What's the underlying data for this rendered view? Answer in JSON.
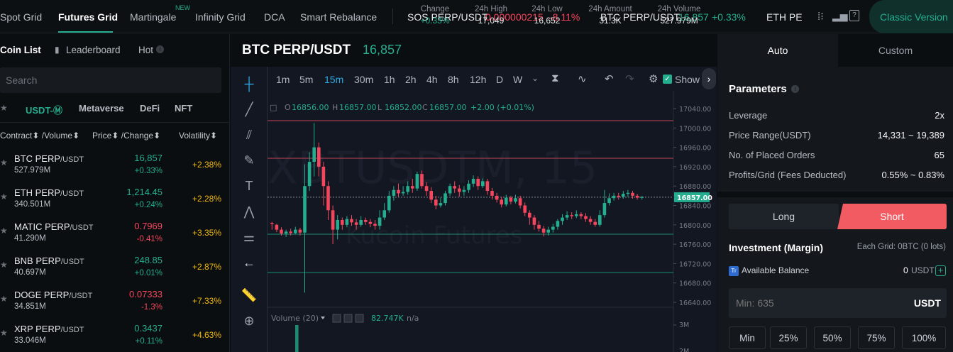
{
  "nav": {
    "items": [
      "Spot Grid",
      "Futures Grid",
      "Martingale",
      "Infinity Grid",
      "DCA",
      "Smart Rebalance"
    ],
    "new_badge": "NEW",
    "tickers": [
      {
        "name": "SOS PERP/USDT",
        "price": "0.000000215",
        "change": "-8.11%"
      },
      {
        "name": "BTC PERP/USDT",
        "price": "16,857",
        "change": "+0.33%"
      },
      {
        "name": "ETH PE",
        "price": "",
        "change": ""
      }
    ],
    "classic_label": "Classic Version"
  },
  "left": {
    "tabs": [
      "Coin List",
      "Leaderboard",
      "Hot"
    ],
    "search_placeholder": "Search",
    "filters": [
      "USDT-Ⓜ",
      "Metaverse",
      "DeFi",
      "NFT"
    ],
    "headers": {
      "contract": "Contract⬍ /Volume⬍",
      "price": "Price⬍ /Change⬍",
      "volatility": "Volatility⬍"
    },
    "rows": [
      {
        "pair": "BTC PERP",
        "quote": "/USDT",
        "volume": "527.979M",
        "price": "16,857",
        "change": "+0.33%",
        "volatility": "+2.38%",
        "price_color": "#24ae8f",
        "change_color": "#24ae8f"
      },
      {
        "pair": "ETH PERP",
        "quote": "/USDT",
        "volume": "340.501M",
        "price": "1,214.45",
        "change": "+0.24%",
        "volatility": "+2.28%",
        "price_color": "#24ae8f",
        "change_color": "#24ae8f"
      },
      {
        "pair": "MATIC PERP",
        "quote": "/USDT",
        "volume": "41.290M",
        "price": "0.7969",
        "change": "-0.41%",
        "volatility": "+3.35%",
        "price_color": "#f6465d",
        "change_color": "#f6465d"
      },
      {
        "pair": "BNB PERP",
        "quote": "/USDT",
        "volume": "40.697M",
        "price": "248.85",
        "change": "+0.01%",
        "volatility": "+2.87%",
        "price_color": "#24ae8f",
        "change_color": "#24ae8f"
      },
      {
        "pair": "DOGE PERP",
        "quote": "/USDT",
        "volume": "34.851M",
        "price": "0.07333",
        "change": "-1.3%",
        "volatility": "+7.33%",
        "price_color": "#f6465d",
        "change_color": "#f6465d"
      },
      {
        "pair": "XRP PERP",
        "quote": "/USDT",
        "volume": "33.046M",
        "price": "0.3437",
        "change": "+0.11%",
        "volatility": "+4.63%",
        "price_color": "#24ae8f",
        "change_color": "#24ae8f"
      }
    ]
  },
  "center": {
    "pair": "BTC PERP/USDT",
    "price": "16,857",
    "stats": [
      {
        "label": "Change",
        "value": "+0.33%"
      },
      {
        "label": "24h High",
        "value": "17,049"
      },
      {
        "label": "24h Low",
        "value": "16,652"
      },
      {
        "label": "24h Amount",
        "value": "31.3K"
      },
      {
        "label": "24h Volume",
        "value": "527.979M"
      }
    ],
    "timeframes": [
      "1m",
      "5m",
      "15m",
      "30m",
      "1h",
      "2h",
      "4h",
      "8h",
      "12h",
      "D",
      "W"
    ],
    "active_timeframe": "15m",
    "show_label": "Show",
    "ohlc": {
      "o_label": "O",
      "o": "16856.00",
      "h_label": "H",
      "h": "16857.00",
      "l_label": "L",
      "l": "16852.00",
      "c_label": "C",
      "c": "16857.00",
      "change": "+2.00 (+0.01%)"
    },
    "price_axis": [
      "17040.00",
      "17000.00",
      "16960.00",
      "16920.00",
      "16880.00",
      "16840.00",
      "16800.00",
      "16760.00",
      "16720.00",
      "16680.00",
      "16640.00"
    ],
    "current_price_tag": "16857.00",
    "watermark_1": "XBTUSDTM, 15",
    "watermark_2": "Kucoin Futures",
    "volume": {
      "label": "Volume (20)",
      "value": "82.747K",
      "na": "n/a",
      "axis": "3M",
      "axis2": "2M"
    }
  },
  "right": {
    "tabs": [
      "Auto",
      "Custom"
    ],
    "section_title": "Parameters",
    "params": [
      {
        "label": "Leverage",
        "value": "2x"
      },
      {
        "label": "Price Range(USDT)",
        "value": "14,331 ~ 19,389"
      },
      {
        "label": "No. of Placed Orders",
        "value": "65"
      },
      {
        "label": "Profits/Grid (Fees Deducted)",
        "value": "0.55% ~ 0.83%"
      }
    ],
    "long_label": "Long",
    "short_label": "Short",
    "investment_title": "Investment (Margin)",
    "each_grid": "Each Grid: 0BTC (0 lots)",
    "available_label": "Available Balance",
    "available_value": "0",
    "available_unit": "USDT",
    "amount_placeholder": "Min: 635",
    "amount_unit": "USDT",
    "percents": [
      "Min",
      "25%",
      "50%",
      "75%",
      "100%"
    ]
  },
  "colors": {
    "up": "#24ae8f",
    "down": "#f6465d",
    "accent": "#24ae8f",
    "short": "#f35b62"
  }
}
